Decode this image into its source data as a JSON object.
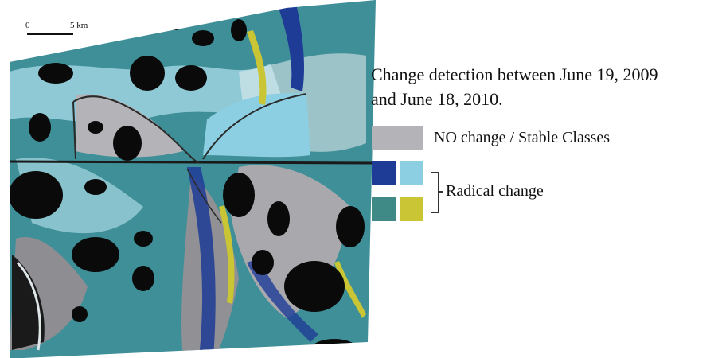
{
  "map": {
    "scale_bar": {
      "label_start": "0",
      "label_end": "5 km"
    },
    "colors": {
      "no_change": "#b4b4b8",
      "radical_dark_blue": "#1e3c96",
      "radical_light_blue": "#8ccfe2",
      "radical_teal": "#3f8a86",
      "radical_yellow": "#c9c534",
      "water": "#0a0a0a",
      "background": "#ffffff"
    }
  },
  "legend": {
    "title_line1": "Change detection between June 19, 2009",
    "title_line2": "and June 18, 2010.",
    "no_change_label": "NO change / Stable Classes",
    "radical_change_label": "Radical change"
  }
}
